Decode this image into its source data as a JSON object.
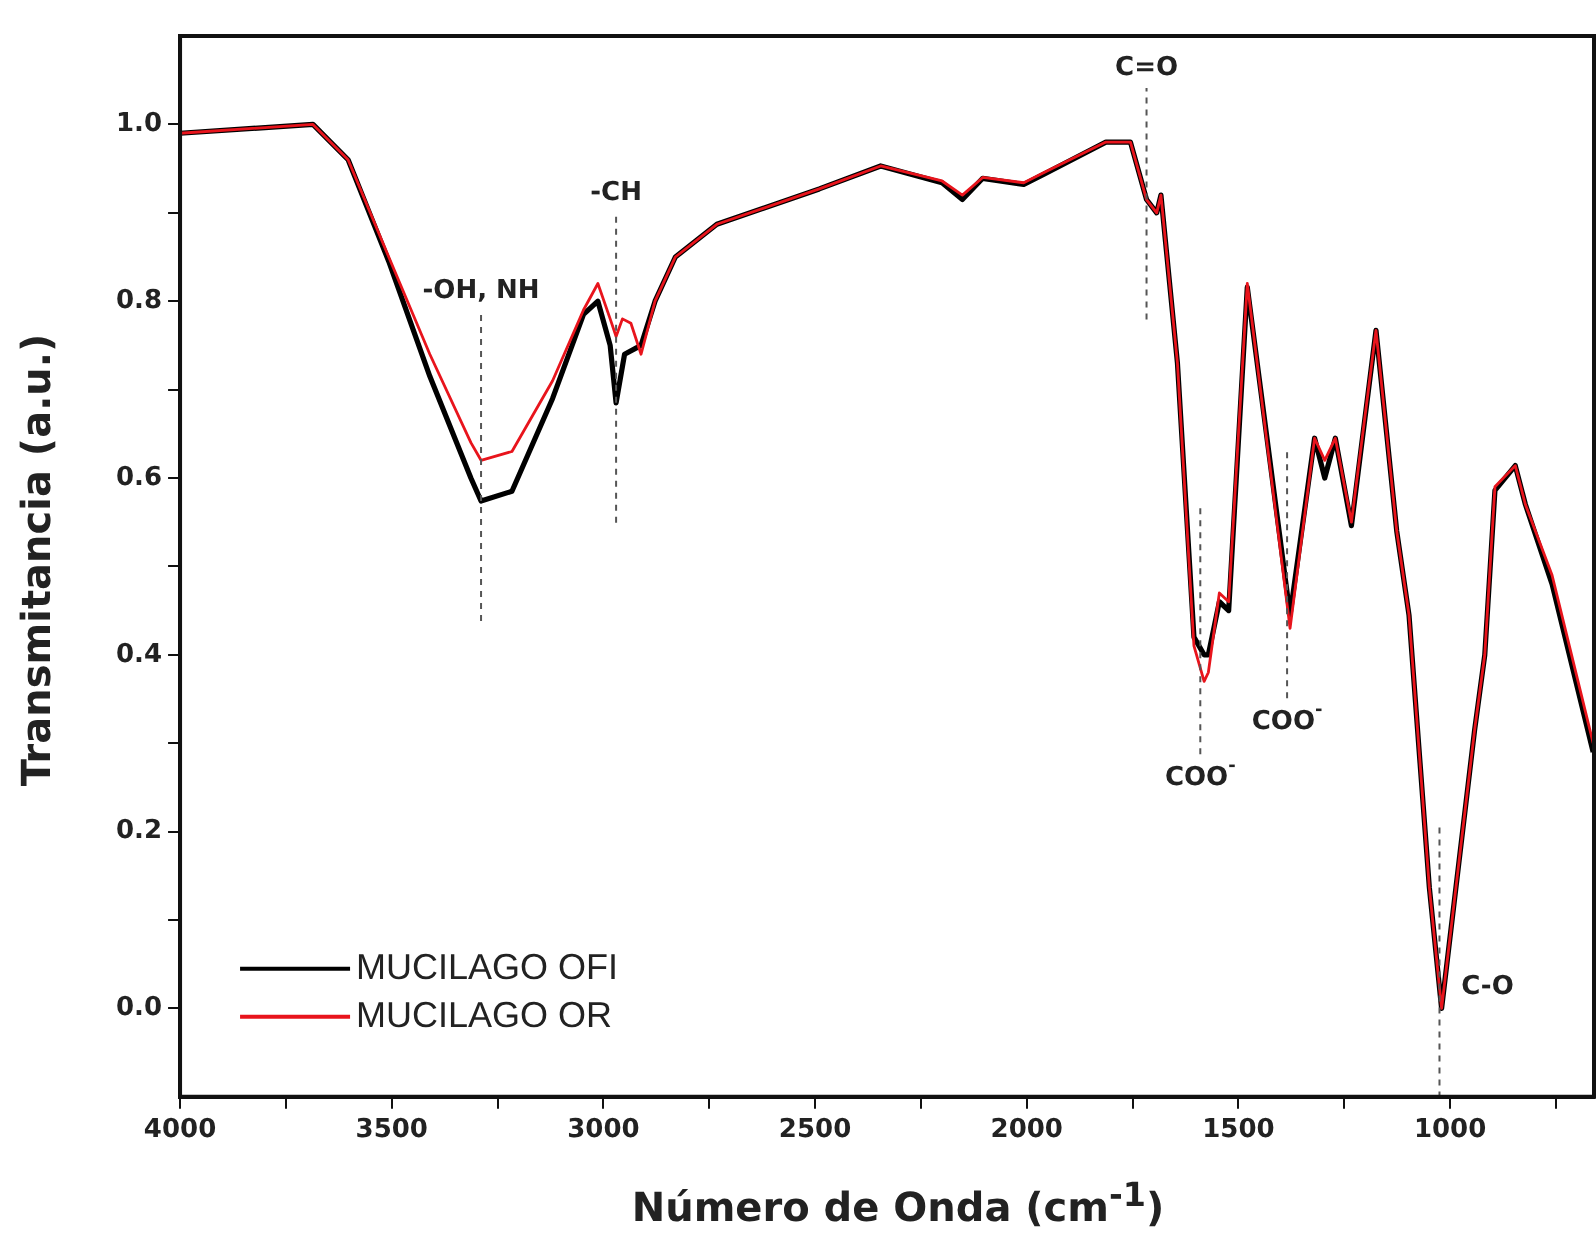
{
  "chart_data": {
    "type": "line",
    "xlabel": "Número de Onda (cm$^{-1}$)",
    "ylabel": "Transmitancia (a.u.)",
    "xlim": [
      4000,
      660
    ],
    "xticks": [
      4000,
      {
        "value": 3750,
        "label": null
      },
      3500,
      {
        "value": 3250,
        "label": null
      },
      3000,
      {
        "value": 2750,
        "label": null
      },
      2500,
      {
        "value": 2250,
        "label": null
      },
      2000,
      {
        "value": 1750,
        "label": null
      },
      1500,
      {
        "value": 1250,
        "label": null
      },
      1000,
      {
        "value": 750,
        "label": null
      }
    ],
    "ylim": [
      -0.1,
      1.1
    ],
    "yticks": [
      {
        "value": 0,
        "label": "0.0"
      },
      {
        "value": 0.1,
        "label": null
      },
      0.2,
      {
        "value": 0.3,
        "label": null
      },
      0.4,
      {
        "value": 0.5,
        "label": null
      },
      0.6,
      {
        "value": 0.7,
        "label": null
      },
      0.8,
      {
        "value": 0.9,
        "label": null
      },
      {
        "value": 1,
        "label": "1.0"
      }
    ],
    "grid": false,
    "legend": "bottom left",
    "marker": "none",
    "line_style": "solid",
    "series": [
      {
        "name": "MUCILAGO OFI",
        "color": "#000000",
        "x": [
          4000,
          3686,
          3603,
          3507,
          3410,
          3313,
          3289,
          3216,
          3120,
          3047,
          3013,
          2984,
          2970,
          2950,
          2911,
          2878,
          2830,
          2732,
          2490,
          2345,
          2200,
          2152,
          2104,
          2007,
          1958,
          1813,
          1755,
          1717,
          1693,
          1683,
          1644,
          1605,
          1581,
          1571,
          1545,
          1523,
          1479,
          1378,
          1320,
          1296,
          1271,
          1233,
          1175,
          1126,
          1097,
          1049,
          1020,
          942,
          918,
          894,
          846,
          822,
          759,
          662
        ],
        "values": [
          0.99,
          1.0,
          0.96,
          0.845,
          0.715,
          0.6,
          0.574,
          0.585,
          0.69,
          0.785,
          0.8,
          0.75,
          0.685,
          0.74,
          0.75,
          0.8,
          0.85,
          0.887,
          0.927,
          0.953,
          0.934,
          0.915,
          0.939,
          0.932,
          0.944,
          0.98,
          0.98,
          0.915,
          0.9,
          0.92,
          0.73,
          0.42,
          0.4,
          0.4,
          0.46,
          0.45,
          0.816,
          0.445,
          0.645,
          0.6,
          0.645,
          0.546,
          0.767,
          0.54,
          0.445,
          0.137,
          0.0,
          0.315,
          0.4,
          0.586,
          0.614,
          0.57,
          0.48,
          0.29
        ]
      },
      {
        "name": "MUCILAGO OR",
        "color": "#e8141c",
        "x": [
          4000,
          3686,
          3603,
          3507,
          3410,
          3313,
          3289,
          3216,
          3120,
          3047,
          3013,
          2984,
          2970,
          2955,
          2935,
          2911,
          2878,
          2830,
          2732,
          2490,
          2345,
          2200,
          2152,
          2104,
          2007,
          1958,
          1813,
          1755,
          1717,
          1693,
          1683,
          1644,
          1605,
          1581,
          1571,
          1545,
          1523,
          1479,
          1378,
          1320,
          1296,
          1271,
          1233,
          1175,
          1126,
          1097,
          1049,
          1020,
          942,
          918,
          894,
          846,
          822,
          759,
          662
        ],
        "values": [
          0.99,
          1.0,
          0.96,
          0.85,
          0.74,
          0.64,
          0.62,
          0.63,
          0.71,
          0.79,
          0.82,
          0.78,
          0.76,
          0.78,
          0.775,
          0.74,
          0.8,
          0.85,
          0.887,
          0.927,
          0.953,
          0.936,
          0.92,
          0.94,
          0.934,
          0.946,
          0.98,
          0.98,
          0.915,
          0.9,
          0.92,
          0.73,
          0.41,
          0.37,
          0.38,
          0.47,
          0.46,
          0.82,
          0.43,
          0.645,
          0.62,
          0.645,
          0.55,
          0.767,
          0.54,
          0.445,
          0.137,
          0.0,
          0.315,
          0.4,
          0.59,
          0.614,
          0.57,
          0.49,
          0.3
        ]
      }
    ],
    "ref_lines": [
      {
        "axis": "x",
        "value": 3289,
        "label": "-OH, NH",
        "line_style": "dashed",
        "color": "#555555"
      },
      {
        "axis": "x",
        "value": 2970,
        "label": "-CH",
        "line_style": "dashed",
        "color": "#555555"
      },
      {
        "axis": "x",
        "value": 1717,
        "label": "C=O",
        "line_style": "dashed",
        "color": "#555555"
      },
      {
        "axis": "x",
        "value": 1590,
        "label": "COO$^{-}$",
        "line_style": "dashed",
        "color": "#555555"
      },
      {
        "axis": "x",
        "value": 1385,
        "label": "COO$^{-}$",
        "line_style": "dashed",
        "color": "#555555"
      },
      {
        "axis": "x",
        "value": 1025,
        "label": "C-O",
        "line_style": "dashed",
        "color": "#555555"
      }
    ]
  }
}
